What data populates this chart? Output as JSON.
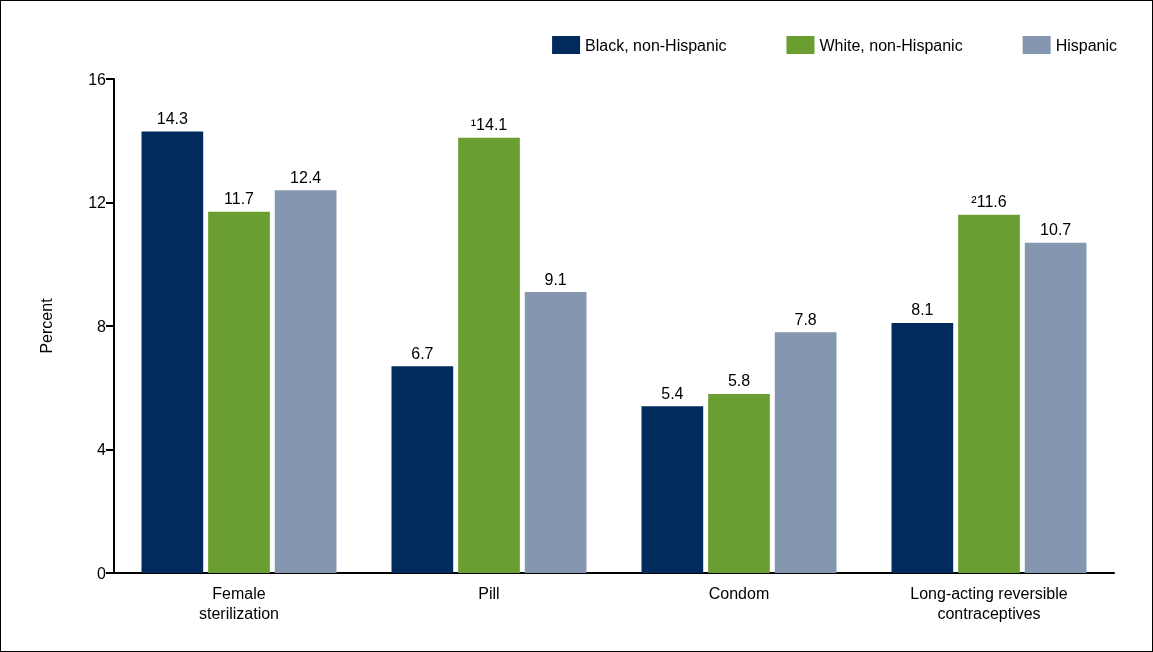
{
  "chart_data": {
    "type": "bar",
    "ylabel": "Percent",
    "categories": [
      "Female\nsterilization",
      "Pill",
      "Condom",
      "Long-acting reversible\ncontraceptives"
    ],
    "series": [
      {
        "name": "Black, non-Hispanic",
        "color": "#002b5c",
        "values": [
          14.3,
          6.7,
          5.4,
          8.1
        ],
        "value_labels": [
          "14.3",
          "6.7",
          "5.4",
          "8.1"
        ]
      },
      {
        "name": "White, non-Hispanic",
        "color": "#6b9e31",
        "values": [
          11.7,
          14.1,
          5.8,
          11.6
        ],
        "value_labels": [
          "11.7",
          "¹14.1",
          "5.8",
          "²11.6"
        ]
      },
      {
        "name": "Hispanic",
        "color": "#8496b0",
        "values": [
          12.4,
          9.1,
          7.8,
          10.7
        ],
        "value_labels": [
          "12.4",
          "9.1",
          "7.8",
          "10.7"
        ]
      }
    ],
    "ylim": [
      0,
      16
    ],
    "yticks": [
      0,
      4,
      8,
      12,
      16
    ],
    "grid": false,
    "legend": "top right"
  }
}
